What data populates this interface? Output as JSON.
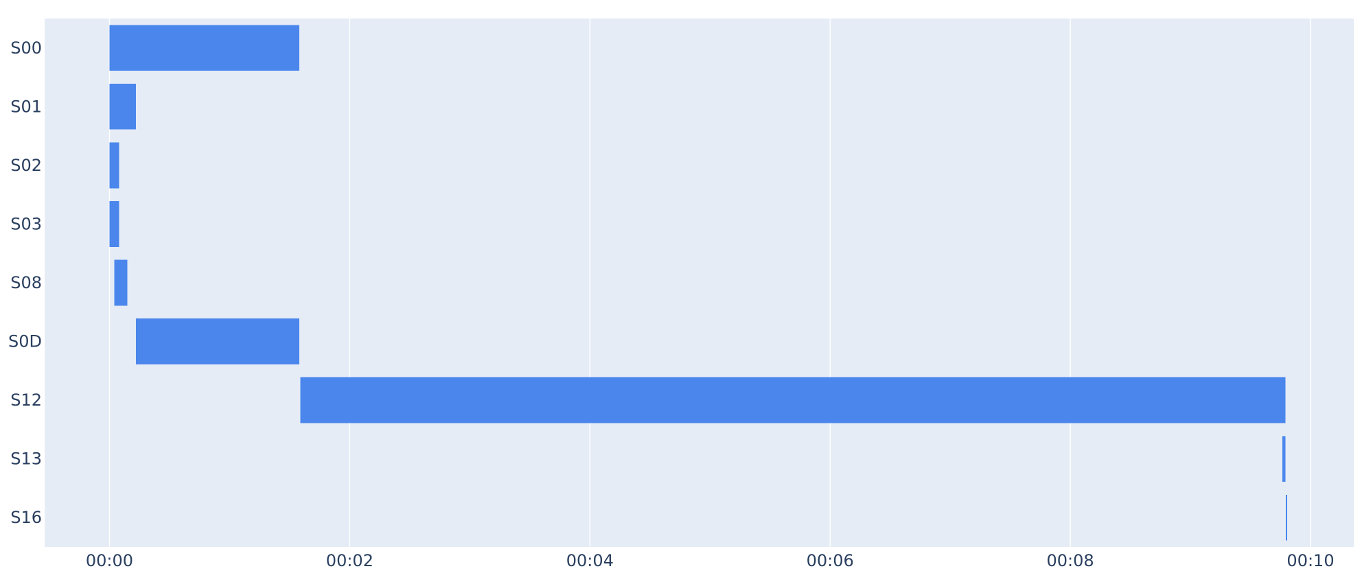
{
  "chart_data": {
    "type": "bar",
    "orientation": "horizontal",
    "subtype": "gantt",
    "title": "",
    "xlabel": "",
    "ylabel": "",
    "x_unit": "seconds",
    "categories": [
      "S00",
      "S01",
      "S02",
      "S03",
      "S08",
      "S0D",
      "S12",
      "S13",
      "S16"
    ],
    "series": [
      {
        "bars": [
          {
            "category": "S00",
            "start": 0.0,
            "end": 1.58
          },
          {
            "category": "S01",
            "start": 0.0,
            "end": 0.22
          },
          {
            "category": "S02",
            "start": 0.0,
            "end": 0.08
          },
          {
            "category": "S03",
            "start": 0.0,
            "end": 0.08
          },
          {
            "category": "S08",
            "start": 0.04,
            "end": 0.15
          },
          {
            "category": "S0D",
            "start": 0.22,
            "end": 1.58
          },
          {
            "category": "S12",
            "start": 1.59,
            "end": 9.79
          },
          {
            "category": "S13",
            "start": 9.765,
            "end": 9.79
          },
          {
            "category": "S16",
            "start": 9.795,
            "end": 9.805
          }
        ]
      }
    ],
    "xlim": [
      -0.54,
      10.36
    ],
    "xticks": [
      0,
      2,
      4,
      6,
      8,
      10
    ],
    "xtick_labels": [
      "00:00",
      "00:02",
      "00:04",
      "00:06",
      "00:08",
      "00:10"
    ],
    "grid": true,
    "legend": "none",
    "colors": {
      "bar": "#4a86ec",
      "plot_bg": "#e5ecf6",
      "grid": "#ffffff",
      "text": "#2a3f5f",
      "paper_bg": "#ffffff"
    }
  }
}
